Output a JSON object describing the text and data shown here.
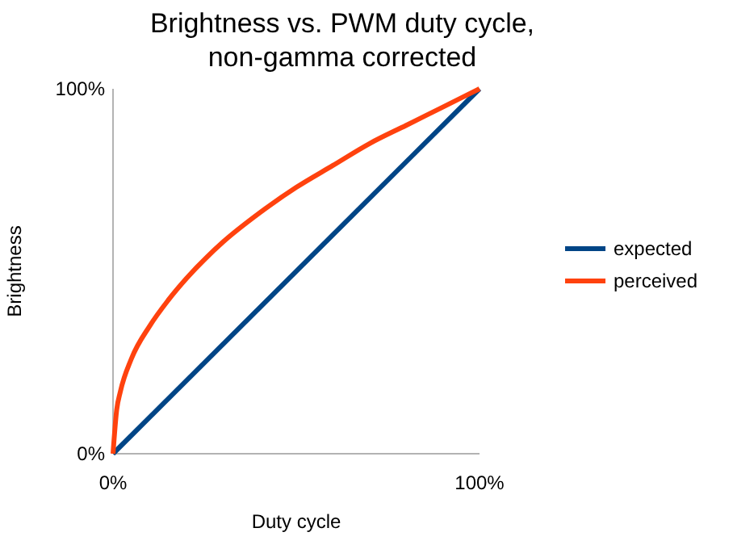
{
  "chart_data": {
    "type": "line",
    "title": "Brightness vs. PWM duty cycle, non-gamma corrected",
    "xlabel": "Duty cycle",
    "ylabel": "Brightness",
    "x": [
      0,
      1,
      2,
      5,
      10,
      15,
      20,
      30,
      40,
      50,
      60,
      70,
      80,
      90,
      100
    ],
    "series": [
      {
        "name": "expected",
        "color": "#004586",
        "x": [
          0,
          100
        ],
        "values": [
          0,
          100
        ]
      },
      {
        "name": "perceived",
        "color": "#ff420e",
        "values": [
          0,
          12,
          17,
          26,
          35,
          42,
          48,
          58,
          66,
          73,
          79,
          85,
          90,
          95,
          100
        ]
      }
    ],
    "xlim": [
      0,
      100
    ],
    "ylim": [
      0,
      100
    ],
    "xticks": [
      {
        "value": 0,
        "label": "0%"
      },
      {
        "value": 100,
        "label": "100%"
      }
    ],
    "yticks": [
      {
        "value": 0,
        "label": "0%"
      },
      {
        "value": 100,
        "label": "100%"
      }
    ],
    "legend": "right",
    "grid": false,
    "marker": "none",
    "line_style": "solid"
  }
}
